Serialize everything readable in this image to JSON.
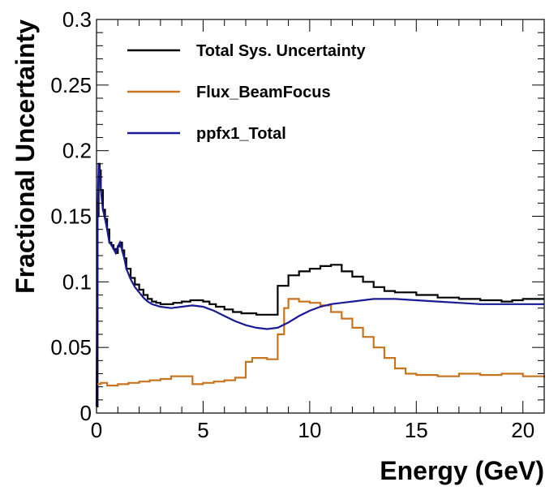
{
  "chart_data": {
    "type": "line",
    "title": "",
    "xlabel": "Energy (GeV)",
    "ylabel": "Fractional Uncertainty",
    "xlim": [
      0,
      21
    ],
    "ylim": [
      0,
      0.3
    ],
    "xticks": [
      "0",
      "5",
      "10",
      "15",
      "20"
    ],
    "yticks": [
      "0",
      "0.05",
      "0.1",
      "0.15",
      "0.2",
      "0.25",
      "0.3"
    ],
    "legend_position": "top-left",
    "grid": false,
    "series": [
      {
        "name": "Total Sys. Uncertainty",
        "color": "#000000",
        "style": "step",
        "x": [
          0,
          0.05,
          0.1,
          0.15,
          0.2,
          0.3,
          0.4,
          0.5,
          0.6,
          0.7,
          0.8,
          0.9,
          1.0,
          1.1,
          1.2,
          1.3,
          1.4,
          1.6,
          1.8,
          2.0,
          2.2,
          2.4,
          2.6,
          2.8,
          3.0,
          3.3,
          3.6,
          4.0,
          4.4,
          4.7,
          5.0,
          5.3,
          5.6,
          6.0,
          6.4,
          6.8,
          7.0,
          7.5,
          8.0,
          8.5,
          9.0,
          9.5,
          10.0,
          10.5,
          11.0,
          11.5,
          12.0,
          12.5,
          13.0,
          13.5,
          14.0,
          15.0,
          16.0,
          17.0,
          18.0,
          18.5,
          19.0,
          19.5,
          20.0,
          20.5,
          21.0
        ],
        "y": [
          0.005,
          0.15,
          0.19,
          0.185,
          0.17,
          0.155,
          0.148,
          0.14,
          0.13,
          0.128,
          0.125,
          0.122,
          0.127,
          0.13,
          0.124,
          0.118,
          0.11,
          0.103,
          0.098,
          0.094,
          0.09,
          0.087,
          0.085,
          0.084,
          0.083,
          0.083,
          0.084,
          0.085,
          0.086,
          0.086,
          0.085,
          0.083,
          0.081,
          0.079,
          0.077,
          0.076,
          0.076,
          0.075,
          0.075,
          0.097,
          0.105,
          0.108,
          0.11,
          0.112,
          0.113,
          0.108,
          0.104,
          0.1,
          0.096,
          0.093,
          0.092,
          0.09,
          0.088,
          0.087,
          0.086,
          0.086,
          0.085,
          0.086,
          0.087,
          0.087,
          0.087
        ]
      },
      {
        "name": "Flux_BeamFocus",
        "color": "#c8741e",
        "style": "step",
        "x": [
          0,
          0.2,
          0.5,
          1.0,
          1.5,
          2.0,
          2.5,
          3.0,
          3.5,
          4.0,
          4.5,
          5.0,
          5.5,
          6.0,
          6.5,
          7.0,
          7.3,
          8.0,
          8.5,
          8.8,
          9.0,
          9.5,
          10.0,
          10.5,
          11.0,
          11.5,
          12.0,
          12.5,
          13.0,
          13.5,
          14.0,
          14.5,
          15.0,
          16.0,
          17.0,
          18.0,
          19.0,
          20.0,
          21.0
        ],
        "y": [
          0.022,
          0.023,
          0.021,
          0.022,
          0.023,
          0.024,
          0.025,
          0.026,
          0.028,
          0.028,
          0.022,
          0.023,
          0.024,
          0.025,
          0.027,
          0.039,
          0.042,
          0.041,
          0.06,
          0.08,
          0.087,
          0.085,
          0.084,
          0.082,
          0.077,
          0.072,
          0.065,
          0.058,
          0.05,
          0.042,
          0.034,
          0.03,
          0.029,
          0.028,
          0.03,
          0.029,
          0.03,
          0.028,
          0.027
        ]
      },
      {
        "name": "ppfx1_Total",
        "color": "#1a1a96",
        "style": "line",
        "x": [
          0,
          0.05,
          0.1,
          0.15,
          0.2,
          0.3,
          0.4,
          0.5,
          0.6,
          0.7,
          0.8,
          0.9,
          1.0,
          1.1,
          1.2,
          1.3,
          1.4,
          1.6,
          1.8,
          2.0,
          2.2,
          2.4,
          2.6,
          2.8,
          3.0,
          3.5,
          4.0,
          4.5,
          5.0,
          5.5,
          6.0,
          6.5,
          7.0,
          7.5,
          8.0,
          8.5,
          9.0,
          9.5,
          10.0,
          10.5,
          11.0,
          11.5,
          12.0,
          12.5,
          13.0,
          13.5,
          14.0,
          15.0,
          16.0,
          17.0,
          18.0,
          19.0,
          20.0,
          21.0
        ],
        "y": [
          0.005,
          0.15,
          0.19,
          0.185,
          0.17,
          0.155,
          0.148,
          0.14,
          0.13,
          0.128,
          0.125,
          0.122,
          0.127,
          0.13,
          0.124,
          0.118,
          0.11,
          0.102,
          0.096,
          0.092,
          0.088,
          0.085,
          0.083,
          0.082,
          0.081,
          0.08,
          0.081,
          0.082,
          0.081,
          0.078,
          0.074,
          0.07,
          0.067,
          0.065,
          0.064,
          0.065,
          0.069,
          0.074,
          0.078,
          0.081,
          0.083,
          0.084,
          0.085,
          0.086,
          0.087,
          0.087,
          0.087,
          0.086,
          0.085,
          0.084,
          0.083,
          0.083,
          0.083,
          0.083
        ]
      }
    ]
  }
}
